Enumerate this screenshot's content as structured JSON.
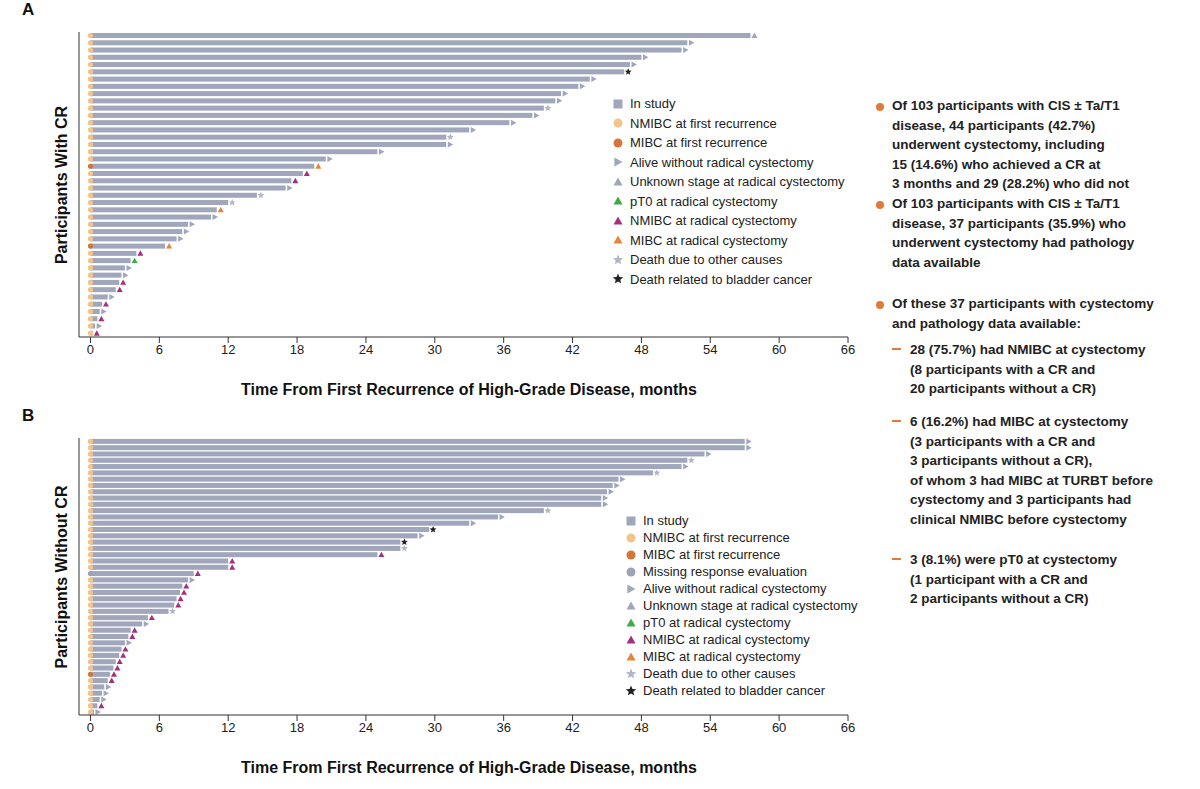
{
  "chart_data": [
    {
      "type": "bar",
      "orientation": "horizontal",
      "panel": "A",
      "y_label": "Participants With CR",
      "x_label": "Time From First Recurrence of High-Grade Disease, months",
      "xlim": [
        -1,
        66
      ],
      "xticks": [
        0,
        6,
        12,
        18,
        24,
        30,
        36,
        42,
        48,
        54,
        60,
        66
      ],
      "legend": [
        {
          "name": "In study",
          "color": "#a0a6bb",
          "marker": "square"
        },
        {
          "name": "NMIBC at first recurrence",
          "color": "#f3c48a",
          "marker": "circle"
        },
        {
          "name": "MIBC at first recurrence",
          "color": "#d2763a",
          "marker": "circle"
        },
        {
          "name": "Alive without radical cystectomy",
          "color": "#a0a6bb",
          "marker": "triangle-right"
        },
        {
          "name": "Unknown stage at radical cystectomy",
          "color": "#a0a6bb",
          "marker": "triangle-up"
        },
        {
          "name": "pT0 at radical cystectomy",
          "color": "#3faa48",
          "marker": "triangle-up"
        },
        {
          "name": "NMIBC at radical cystectomy",
          "color": "#a3307f",
          "marker": "triangle-up"
        },
        {
          "name": "MIBC at radical cystectomy",
          "color": "#e8843a",
          "marker": "triangle-up"
        },
        {
          "name": "Death due to other causes",
          "color": "#b3b6c4",
          "marker": "star"
        },
        {
          "name": "Death related to bladder cancer",
          "color": "#222222",
          "marker": "star"
        }
      ],
      "rows": [
        {
          "value": 57.5,
          "start": "NMIBC at first recurrence",
          "end": "Unknown stage at radical cystectomy"
        },
        {
          "value": 52,
          "start": "NMIBC at first recurrence",
          "end": "Alive without radical cystectomy"
        },
        {
          "value": 51.5,
          "start": "NMIBC at first recurrence",
          "end": "Alive without radical cystectomy"
        },
        {
          "value": 48,
          "start": "NMIBC at first recurrence",
          "end": "Alive without radical cystectomy"
        },
        {
          "value": 47,
          "start": "NMIBC at first recurrence",
          "end": "Alive without radical cystectomy"
        },
        {
          "value": 46.5,
          "start": "NMIBC at first recurrence",
          "end": "Death related to bladder cancer"
        },
        {
          "value": 43.5,
          "start": "NMIBC at first recurrence",
          "end": "Alive without radical cystectomy"
        },
        {
          "value": 42.5,
          "start": "NMIBC at first recurrence",
          "end": "Alive without radical cystectomy"
        },
        {
          "value": 41,
          "start": "NMIBC at first recurrence",
          "end": "Alive without radical cystectomy"
        },
        {
          "value": 40.5,
          "start": "NMIBC at first recurrence",
          "end": "Alive without radical cystectomy"
        },
        {
          "value": 39.5,
          "start": "NMIBC at first recurrence",
          "end": "Death due to other causes"
        },
        {
          "value": 38.5,
          "start": "NMIBC at first recurrence",
          "end": "Alive without radical cystectomy"
        },
        {
          "value": 36.5,
          "start": "NMIBC at first recurrence",
          "end": "Alive without radical cystectomy"
        },
        {
          "value": 33,
          "start": "NMIBC at first recurrence",
          "end": "Alive without radical cystectomy"
        },
        {
          "value": 31,
          "start": "NMIBC at first recurrence",
          "end": "Death due to other causes"
        },
        {
          "value": 31,
          "start": "NMIBC at first recurrence",
          "end": "Alive without radical cystectomy"
        },
        {
          "value": 25,
          "start": "NMIBC at first recurrence",
          "end": "Alive without radical cystectomy"
        },
        {
          "value": 20.5,
          "start": "NMIBC at first recurrence",
          "end": "Alive without radical cystectomy"
        },
        {
          "value": 19.5,
          "start": "MIBC at first recurrence",
          "end": "MIBC at radical cystectomy"
        },
        {
          "value": 18.5,
          "start": "NMIBC at first recurrence",
          "end": "NMIBC at radical cystectomy"
        },
        {
          "value": 17.5,
          "start": "NMIBC at first recurrence",
          "end": "NMIBC at radical cystectomy"
        },
        {
          "value": 17,
          "start": "NMIBC at first recurrence",
          "end": "Alive without radical cystectomy"
        },
        {
          "value": 14.5,
          "start": "NMIBC at first recurrence",
          "end": "Death due to other causes"
        },
        {
          "value": 12,
          "start": "NMIBC at first recurrence",
          "end": "Death due to other causes"
        },
        {
          "value": 11,
          "start": "NMIBC at first recurrence",
          "end": "MIBC at radical cystectomy"
        },
        {
          "value": 10.5,
          "start": "NMIBC at first recurrence",
          "end": "Alive without radical cystectomy"
        },
        {
          "value": 8.5,
          "start": "NMIBC at first recurrence",
          "end": "Alive without radical cystectomy"
        },
        {
          "value": 8,
          "start": "NMIBC at first recurrence",
          "end": "Alive without radical cystectomy"
        },
        {
          "value": 7.5,
          "start": "NMIBC at first recurrence",
          "end": "Alive without radical cystectomy"
        },
        {
          "value": 6.5,
          "start": "MIBC at first recurrence",
          "end": "MIBC at radical cystectomy"
        },
        {
          "value": 4,
          "start": "NMIBC at first recurrence",
          "end": "NMIBC at radical cystectomy"
        },
        {
          "value": 3.5,
          "start": "NMIBC at first recurrence",
          "end": "pT0 at radical cystectomy"
        },
        {
          "value": 3,
          "start": "NMIBC at first recurrence",
          "end": "Alive without radical cystectomy"
        },
        {
          "value": 2.7,
          "start": "NMIBC at first recurrence",
          "end": "Alive without radical cystectomy"
        },
        {
          "value": 2.5,
          "start": "NMIBC at first recurrence",
          "end": "NMIBC at radical cystectomy"
        },
        {
          "value": 2.2,
          "start": "NMIBC at first recurrence",
          "end": "NMIBC at radical cystectomy"
        },
        {
          "value": 1.5,
          "start": "NMIBC at first recurrence",
          "end": "Alive without radical cystectomy"
        },
        {
          "value": 1,
          "start": "NMIBC at first recurrence",
          "end": "NMIBC at radical cystectomy"
        },
        {
          "value": 0.8,
          "start": "NMIBC at first recurrence",
          "end": "Alive without radical cystectomy"
        },
        {
          "value": 0.6,
          "start": "NMIBC at first recurrence",
          "end": "NMIBC at radical cystectomy"
        },
        {
          "value": 0.4,
          "start": "NMIBC at first recurrence",
          "end": "Alive without radical cystectomy"
        },
        {
          "value": 0.2,
          "start": "NMIBC at first recurrence",
          "end": "NMIBC at radical cystectomy"
        }
      ]
    },
    {
      "type": "bar",
      "orientation": "horizontal",
      "panel": "B",
      "y_label": "Participants Without CR",
      "x_label": "Time From First Recurrence of High-Grade Disease, months",
      "xlim": [
        -1,
        66
      ],
      "xticks": [
        0,
        6,
        12,
        18,
        24,
        30,
        36,
        42,
        48,
        54,
        60,
        66
      ],
      "legend": [
        {
          "name": "In study",
          "color": "#a0a6bb",
          "marker": "square"
        },
        {
          "name": "NMIBC at first recurrence",
          "color": "#f3c48a",
          "marker": "circle"
        },
        {
          "name": "MIBC at first recurrence",
          "color": "#d2763a",
          "marker": "circle"
        },
        {
          "name": "Missing response evaluation",
          "color": "#9ea2b4",
          "marker": "circle"
        },
        {
          "name": "Alive without radical cystectomy",
          "color": "#a0a6bb",
          "marker": "triangle-right"
        },
        {
          "name": "Unknown stage at radical cystectomy",
          "color": "#a0a6bb",
          "marker": "triangle-up"
        },
        {
          "name": "pT0 at radical cystectomy",
          "color": "#3faa48",
          "marker": "triangle-up"
        },
        {
          "name": "NMIBC at radical cystectomy",
          "color": "#a3307f",
          "marker": "triangle-up"
        },
        {
          "name": "MIBC at radical cystectomy",
          "color": "#e8843a",
          "marker": "triangle-up"
        },
        {
          "name": "Death due to other causes",
          "color": "#b3b6c4",
          "marker": "star"
        },
        {
          "name": "Death related to bladder cancer",
          "color": "#222222",
          "marker": "star"
        }
      ],
      "rows": [
        {
          "value": 57,
          "start": "NMIBC at first recurrence",
          "end": "Alive without radical cystectomy"
        },
        {
          "value": 57,
          "start": "NMIBC at first recurrence",
          "end": "Alive without radical cystectomy"
        },
        {
          "value": 53.5,
          "start": "NMIBC at first recurrence",
          "end": "Alive without radical cystectomy"
        },
        {
          "value": 52,
          "start": "NMIBC at first recurrence",
          "end": "Death due to other causes"
        },
        {
          "value": 51.5,
          "start": "NMIBC at first recurrence",
          "end": "Alive without radical cystectomy"
        },
        {
          "value": 49,
          "start": "NMIBC at first recurrence",
          "end": "Death due to other causes"
        },
        {
          "value": 46,
          "start": "NMIBC at first recurrence",
          "end": "Alive without radical cystectomy"
        },
        {
          "value": 45.5,
          "start": "NMIBC at first recurrence",
          "end": "Alive without radical cystectomy"
        },
        {
          "value": 45,
          "start": "NMIBC at first recurrence",
          "end": "Alive without radical cystectomy"
        },
        {
          "value": 44.5,
          "start": "NMIBC at first recurrence",
          "end": "Alive without radical cystectomy"
        },
        {
          "value": 44.5,
          "start": "NMIBC at first recurrence",
          "end": "Alive without radical cystectomy"
        },
        {
          "value": 39.5,
          "start": "NMIBC at first recurrence",
          "end": "Death due to other causes"
        },
        {
          "value": 35.5,
          "start": "NMIBC at first recurrence",
          "end": "Alive without radical cystectomy"
        },
        {
          "value": 33,
          "start": "NMIBC at first recurrence",
          "end": "Alive without radical cystectomy"
        },
        {
          "value": 29.5,
          "start": "NMIBC at first recurrence",
          "end": "Death related to bladder cancer"
        },
        {
          "value": 28.5,
          "start": "NMIBC at first recurrence",
          "end": "Alive without radical cystectomy"
        },
        {
          "value": 27,
          "start": "NMIBC at first recurrence",
          "end": "Death related to bladder cancer"
        },
        {
          "value": 27,
          "start": "NMIBC at first recurrence",
          "end": "Death due to other causes"
        },
        {
          "value": 25,
          "start": "NMIBC at first recurrence",
          "end": "NMIBC at radical cystectomy"
        },
        {
          "value": 12,
          "start": "NMIBC at first recurrence",
          "end": "NMIBC at radical cystectomy"
        },
        {
          "value": 12,
          "start": "NMIBC at first recurrence",
          "end": "NMIBC at radical cystectomy"
        },
        {
          "value": 9,
          "start": "Missing response evaluation",
          "end": "NMIBC at radical cystectomy"
        },
        {
          "value": 8.5,
          "start": "NMIBC at first recurrence",
          "end": "Alive without radical cystectomy"
        },
        {
          "value": 8,
          "start": "NMIBC at first recurrence",
          "end": "NMIBC at radical cystectomy"
        },
        {
          "value": 7.8,
          "start": "NMIBC at first recurrence",
          "end": "NMIBC at radical cystectomy"
        },
        {
          "value": 7.5,
          "start": "NMIBC at first recurrence",
          "end": "NMIBC at radical cystectomy"
        },
        {
          "value": 7.3,
          "start": "NMIBC at first recurrence",
          "end": "NMIBC at radical cystectomy"
        },
        {
          "value": 6.8,
          "start": "NMIBC at first recurrence",
          "end": "Death due to other causes"
        },
        {
          "value": 5,
          "start": "NMIBC at first recurrence",
          "end": "NMIBC at radical cystectomy"
        },
        {
          "value": 4.5,
          "start": "NMIBC at first recurrence",
          "end": "Alive without radical cystectomy"
        },
        {
          "value": 3.5,
          "start": "NMIBC at first recurrence",
          "end": "NMIBC at radical cystectomy"
        },
        {
          "value": 3.3,
          "start": "NMIBC at first recurrence",
          "end": "NMIBC at radical cystectomy"
        },
        {
          "value": 3,
          "start": "NMIBC at first recurrence",
          "end": "Alive without radical cystectomy"
        },
        {
          "value": 2.7,
          "start": "NMIBC at first recurrence",
          "end": "NMIBC at radical cystectomy"
        },
        {
          "value": 2.5,
          "start": "NMIBC at first recurrence",
          "end": "NMIBC at radical cystectomy"
        },
        {
          "value": 2.2,
          "start": "NMIBC at first recurrence",
          "end": "NMIBC at radical cystectomy"
        },
        {
          "value": 2,
          "start": "NMIBC at first recurrence",
          "end": "NMIBC at radical cystectomy"
        },
        {
          "value": 1.7,
          "start": "MIBC at first recurrence",
          "end": "NMIBC at radical cystectomy"
        },
        {
          "value": 1.5,
          "start": "NMIBC at first recurrence",
          "end": "NMIBC at radical cystectomy"
        },
        {
          "value": 1.2,
          "start": "NMIBC at first recurrence",
          "end": "Alive without radical cystectomy"
        },
        {
          "value": 1,
          "start": "NMIBC at first recurrence",
          "end": "Alive without radical cystectomy"
        },
        {
          "value": 0.8,
          "start": "NMIBC at first recurrence",
          "end": "Alive without radical cystectomy"
        },
        {
          "value": 0.6,
          "start": "NMIBC at first recurrence",
          "end": "NMIBC at radical cystectomy"
        },
        {
          "value": 0.3,
          "start": "NMIBC at first recurrence",
          "end": "Alive without radical cystectomy"
        }
      ]
    }
  ],
  "notes": [
    {
      "lines": [
        "Of 103 participants with CIS ± Ta/T1",
        "disease, 44 participants (42.7%)",
        "underwent cystectomy, including",
        "15 (14.6%) who achieved a CR at",
        "3 months and 29 (28.2%) who did not"
      ],
      "subitems": []
    },
    {
      "lines": [
        "Of 103 participants with CIS ± Ta/T1",
        "disease, 37 participants (35.9%) who",
        "underwent cystectomy had pathology",
        "data available"
      ],
      "subitems": []
    },
    {
      "lines": [
        "Of these 37 participants with cystectomy",
        "and pathology data available:"
      ],
      "subitems": [
        [
          "28 (75.7%) had NMIBC at cystectomy",
          "(8 participants with a CR and",
          "20 participants without a CR)"
        ],
        [
          "6 (16.2%) had MIBC at cystectomy",
          "(3 participants with a CR and",
          "3 participants without a CR),",
          "of whom 3 had MIBC at TURBT before",
          "cystectomy and 3 participants had",
          "clinical NMIBC before cystectomy"
        ],
        [
          "3 (8.1%) were pT0 at cystectomy",
          "(1 participant with a CR and",
          "2 participants without a CR)"
        ]
      ]
    }
  ]
}
